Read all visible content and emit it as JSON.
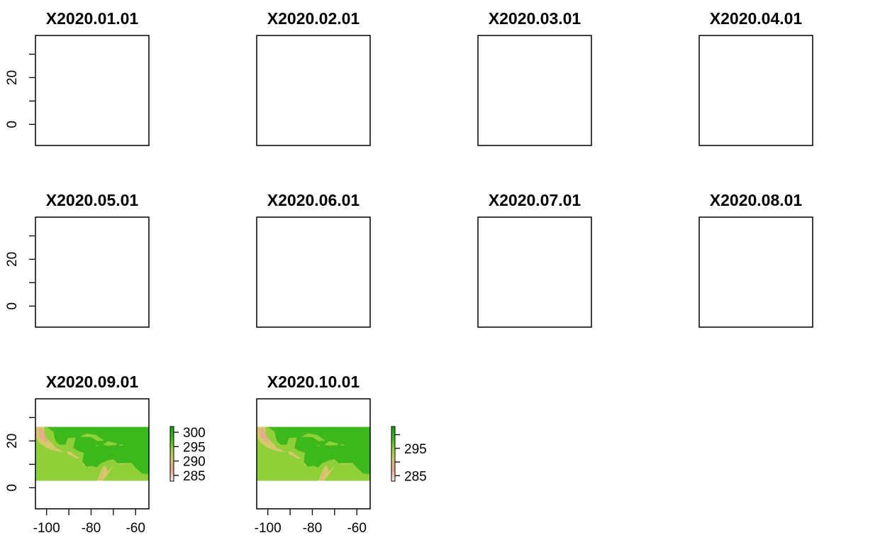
{
  "chart_data": {
    "type": "heatmap",
    "panels": [
      {
        "title": "X2020.01.01",
        "has_data": false
      },
      {
        "title": "X2020.02.01",
        "has_data": false
      },
      {
        "title": "X2020.03.01",
        "has_data": false
      },
      {
        "title": "X2020.04.01",
        "has_data": false
      },
      {
        "title": "X2020.05.01",
        "has_data": false
      },
      {
        "title": "X2020.06.01",
        "has_data": false
      },
      {
        "title": "X2020.07.01",
        "has_data": false
      },
      {
        "title": "X2020.08.01",
        "has_data": false
      },
      {
        "title": "X2020.09.01",
        "has_data": true,
        "legend": {
          "range": [
            283,
            302
          ],
          "ticks": [
            {
              "value": 300,
              "label": "300"
            },
            {
              "value": 295,
              "label": "295"
            },
            {
              "value": 290,
              "label": "290"
            },
            {
              "value": 285,
              "label": "285"
            }
          ]
        }
      },
      {
        "title": "X2020.10.01",
        "has_data": true,
        "legend": {
          "range": [
            283,
            303
          ],
          "ticks": [
            {
              "value": 300,
              "label": ""
            },
            {
              "value": 295,
              "label": "295"
            },
            {
              "value": 290,
              "label": ""
            },
            {
              "value": 285,
              "label": "285"
            }
          ]
        }
      }
    ],
    "xlim": [
      -105,
      -54
    ],
    "ylim": [
      -9,
      38
    ],
    "x_ticks": [
      {
        "value": -100,
        "label": "-100"
      },
      {
        "value": -90,
        "label": ""
      },
      {
        "value": -80,
        "label": "-80"
      },
      {
        "value": -70,
        "label": ""
      },
      {
        "value": -60,
        "label": "-60"
      }
    ],
    "y_ticks": [
      {
        "value": 0,
        "label": "0"
      },
      {
        "value": 10,
        "label": ""
      },
      {
        "value": 20,
        "label": "20"
      },
      {
        "value": 30,
        "label": ""
      }
    ],
    "raster_extent": {
      "x": [
        -105,
        -54
      ],
      "y": [
        3,
        26
      ]
    },
    "palette": [
      "#f4f0ec",
      "#e8a78e",
      "#d5c96a",
      "#8fd038",
      "#3cb81c",
      "#1a9e0a"
    ]
  }
}
